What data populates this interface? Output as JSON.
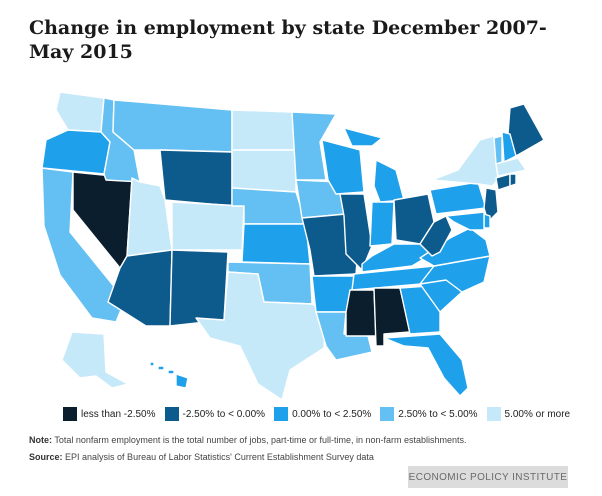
{
  "title": "Change in employment by state December 2007-May 2015",
  "legend": [
    {
      "label": "less than -2.50%",
      "color": "#0a1e2e"
    },
    {
      "label": "-2.50% to < 0.00%",
      "color": "#0d5a8c"
    },
    {
      "label": "0.00% to < 2.50%",
      "color": "#1ea0eb"
    },
    {
      "label": "2.50% to < 5.00%",
      "color": "#64c0f2"
    },
    {
      "label": "5.00% or more",
      "color": "#c6e9fa"
    }
  ],
  "notes": {
    "note_label": "Note:",
    "note_text": "Total nonfarm employment is the total number of jobs, part-time or full-time, in non-farm establishments.",
    "source_label": "Source:",
    "source_text": "EPI analysis of Bureau of Labor Statistics' Current Establishment Survey data"
  },
  "brand": "ECONOMIC POLICY INSTITUTE",
  "states": [
    {
      "id": "WA",
      "category": 4
    },
    {
      "id": "OR",
      "category": 2
    },
    {
      "id": "CA",
      "category": 3
    },
    {
      "id": "NV",
      "category": 0
    },
    {
      "id": "ID",
      "category": 3
    },
    {
      "id": "UT",
      "category": 4
    },
    {
      "id": "AZ",
      "category": 1
    },
    {
      "id": "MT",
      "category": 3
    },
    {
      "id": "WY",
      "category": 1
    },
    {
      "id": "CO",
      "category": 4
    },
    {
      "id": "NM",
      "category": 1
    },
    {
      "id": "ND",
      "category": 4
    },
    {
      "id": "SD",
      "category": 4
    },
    {
      "id": "NE",
      "category": 3
    },
    {
      "id": "KS",
      "category": 2
    },
    {
      "id": "OK",
      "category": 3
    },
    {
      "id": "TX",
      "category": 4
    },
    {
      "id": "MN",
      "category": 3
    },
    {
      "id": "IA",
      "category": 3
    },
    {
      "id": "MO",
      "category": 1
    },
    {
      "id": "AR",
      "category": 2
    },
    {
      "id": "LA",
      "category": 3
    },
    {
      "id": "WI",
      "category": 2
    },
    {
      "id": "IL",
      "category": 1
    },
    {
      "id": "MI",
      "category": 2
    },
    {
      "id": "IN",
      "category": 2
    },
    {
      "id": "OH",
      "category": 1
    },
    {
      "id": "KY",
      "category": 2
    },
    {
      "id": "TN",
      "category": 2
    },
    {
      "id": "MS",
      "category": 0
    },
    {
      "id": "AL",
      "category": 0
    },
    {
      "id": "GA",
      "category": 2
    },
    {
      "id": "FL",
      "category": 2
    },
    {
      "id": "SC",
      "category": 2
    },
    {
      "id": "NC",
      "category": 2
    },
    {
      "id": "VA",
      "category": 2
    },
    {
      "id": "WV",
      "category": 1
    },
    {
      "id": "PA",
      "category": 2
    },
    {
      "id": "NY",
      "category": 4
    },
    {
      "id": "ME",
      "category": 1
    },
    {
      "id": "VT",
      "category": 3
    },
    {
      "id": "NH",
      "category": 2
    },
    {
      "id": "MA",
      "category": 4
    },
    {
      "id": "CT",
      "category": 1
    },
    {
      "id": "RI",
      "category": 1
    },
    {
      "id": "NJ",
      "category": 1
    },
    {
      "id": "DE",
      "category": 2
    },
    {
      "id": "MD",
      "category": 2
    },
    {
      "id": "AK",
      "category": 4
    },
    {
      "id": "HI",
      "category": 2
    }
  ]
}
